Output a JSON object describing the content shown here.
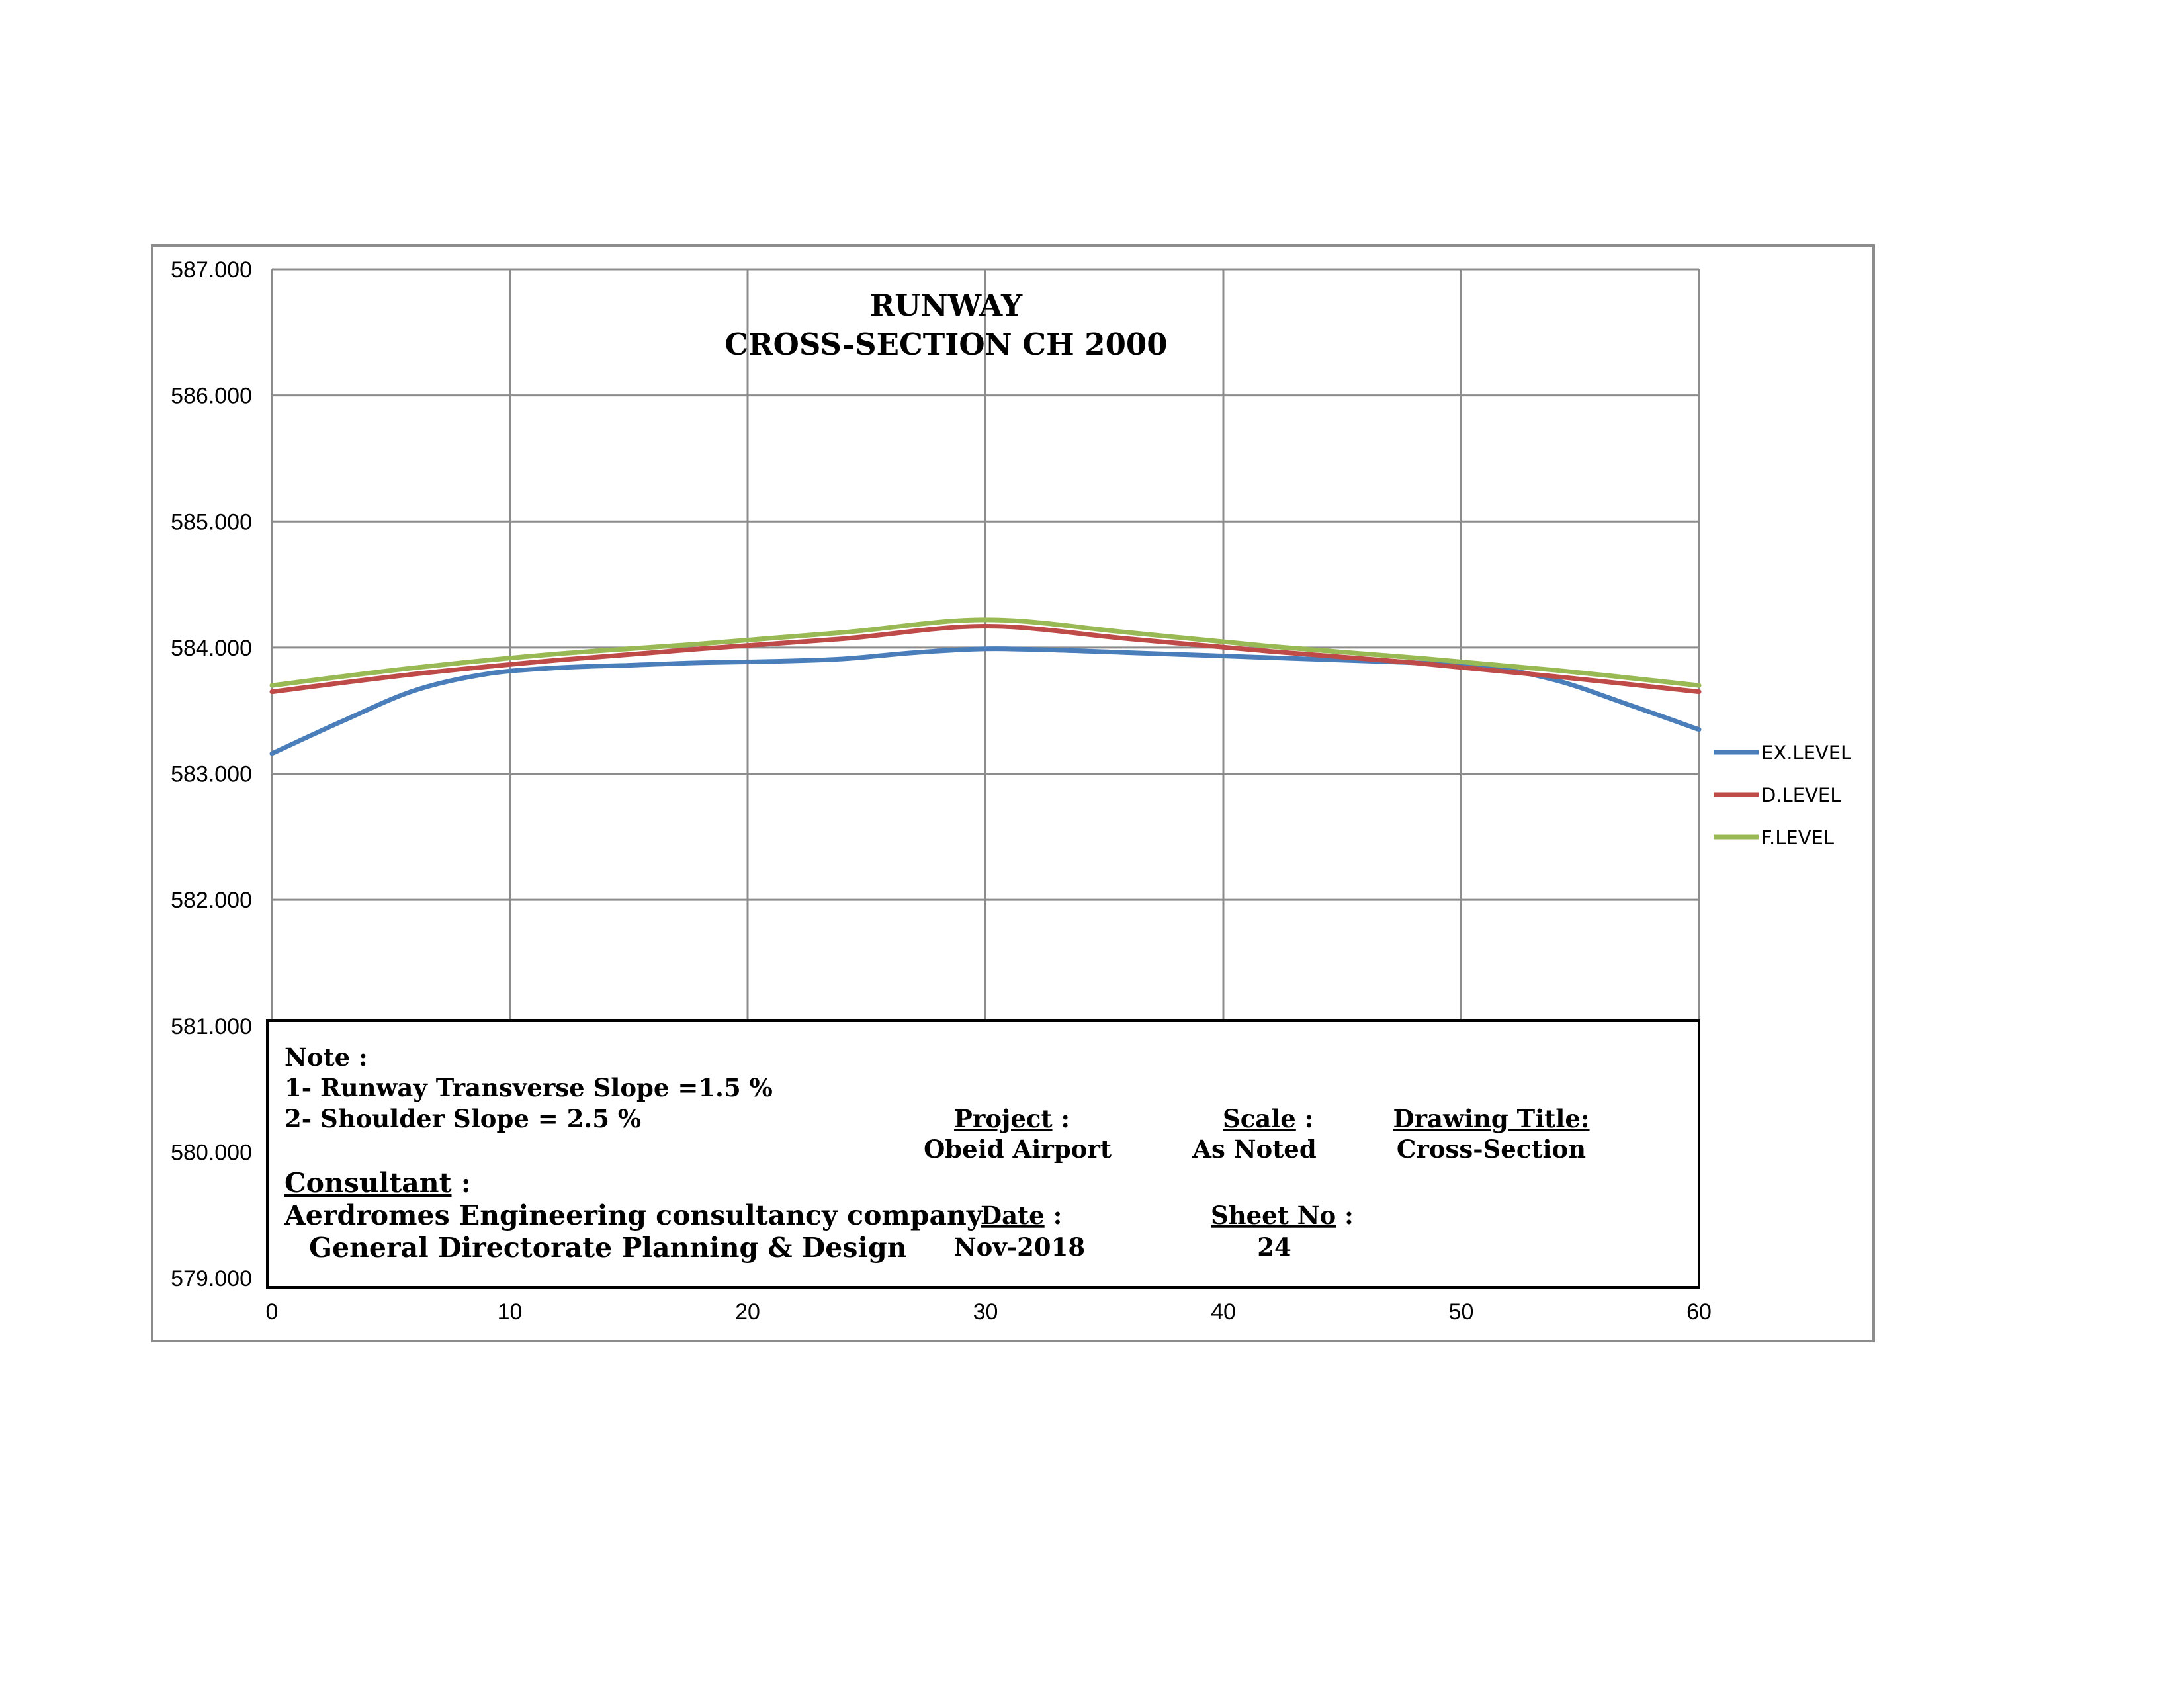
{
  "chart_data": {
    "type": "line",
    "title": [
      "RUNWAY",
      "CROSS-SECTION CH 2000"
    ],
    "xlabel": "",
    "ylabel": "",
    "xlim": [
      0,
      60
    ],
    "ylim": [
      579,
      587
    ],
    "x_ticks": [
      "0",
      "10",
      "20",
      "30",
      "40",
      "50",
      "60"
    ],
    "y_ticks": [
      "579.000",
      "580.000",
      "581.000",
      "582.000",
      "583.000",
      "584.000",
      "585.000",
      "586.000",
      "587.000"
    ],
    "grid": true,
    "legend_position": "right",
    "series": [
      {
        "name": "EX.LEVEL",
        "color": "#4a7ebb",
        "x": [
          0,
          3,
          6,
          9,
          12,
          15,
          18,
          21,
          24,
          27,
          30,
          33,
          36,
          39,
          42,
          45,
          48,
          51,
          54,
          57,
          60
        ],
        "y": [
          583.16,
          583.42,
          583.66,
          583.79,
          583.84,
          583.86,
          583.88,
          583.89,
          583.91,
          583.96,
          583.99,
          583.98,
          583.96,
          583.94,
          583.92,
          583.9,
          583.88,
          583.85,
          583.74,
          583.55,
          583.35
        ]
      },
      {
        "name": "D.LEVEL",
        "color": "#be4b48",
        "x": [
          0,
          6,
          12,
          18,
          24,
          30,
          36,
          42,
          48,
          54,
          60
        ],
        "y": [
          583.65,
          583.79,
          583.9,
          583.99,
          584.07,
          584.17,
          584.07,
          583.97,
          583.88,
          583.77,
          583.65
        ]
      },
      {
        "name": "F.LEVEL",
        "color": "#98b954",
        "x": [
          0,
          6,
          12,
          18,
          24,
          30,
          36,
          42,
          48,
          54,
          60
        ],
        "y": [
          583.7,
          583.84,
          583.95,
          584.03,
          584.12,
          584.22,
          584.12,
          584.01,
          583.92,
          583.82,
          583.7
        ]
      }
    ]
  },
  "note_box": {
    "note_heading": "Note :",
    "note_1": "1- Runway Transverse Slope =1.5 %",
    "note_2": "2- Shoulder Slope = 2.5 %",
    "consultant_heading": "Consultant",
    "consultant_colon": " :",
    "consultant_line_1": "Aerdromes Engineering consultancy company",
    "consultant_line_2": "General Directorate Planning & Design",
    "project_label": "Project",
    "project_colon": " :",
    "project_value": "Obeid Airport",
    "scale_label": "Scale",
    "scale_colon": " :",
    "scale_value": "As Noted",
    "drawing_title_label": "Drawing Title:",
    "drawing_title_value": "Cross-Section",
    "date_label": "Date",
    "date_colon": " :",
    "date_value": "Nov-2018",
    "sheet_label": "Sheet No",
    "sheet_colon": "  :",
    "sheet_value": "24"
  }
}
